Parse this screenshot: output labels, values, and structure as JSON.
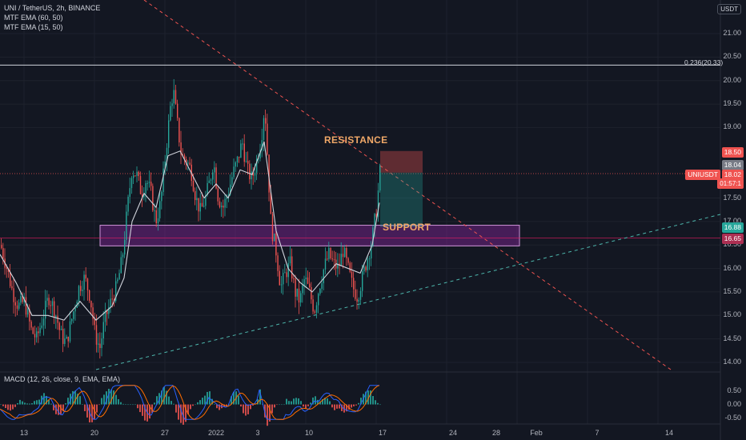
{
  "header": {
    "symbol_line": "UNI / TetherUS, 2h, BINANCE",
    "indicator_1": "MTF EMA (60, 50)",
    "indicator_2": "MTF EMA (15, 50)",
    "currency_badge": "USDT"
  },
  "price_axis": {
    "ticks": [
      "21.00",
      "20.50",
      "20.00",
      "19.50",
      "19.00",
      "17.50",
      "17.00",
      "16.50",
      "16.00",
      "15.50",
      "15.00",
      "14.50",
      "14.00"
    ],
    "tick_values": [
      21.0,
      20.5,
      20.0,
      19.5,
      19.0,
      17.5,
      17.0,
      16.5,
      16.0,
      15.5,
      15.0,
      14.5,
      14.0
    ],
    "tag_stop": "18.50",
    "tag_entry": "18.04",
    "tag_symbol": "UNIUSDT",
    "tag_price": "18.02",
    "tag_countdown": "01:57:1",
    "tag_target": "16.88",
    "tag_support": "16.65"
  },
  "time_axis": {
    "labels": [
      "13",
      "20",
      "27",
      "2022",
      "3",
      "10",
      "17",
      "24",
      "28",
      "Feb",
      "7",
      "14"
    ]
  },
  "annotations": {
    "resistance": "RESISTANCE",
    "support": "SUPPORT",
    "fib_level": "0.236(20.33)"
  },
  "macd": {
    "legend": "MACD (12, 26, close, 9, EMA, EMA)",
    "ticks": [
      "0.50",
      "0.00",
      "-0.50"
    ]
  },
  "colors": {
    "background": "#131722",
    "up_candle": "#26a69a",
    "down_candle": "#ef5350",
    "ema_line": "#d1d4dc",
    "support_zone": "#9c27b0",
    "resistance_line": "#ef5350",
    "trend_line": "#4db6ac",
    "macd_line": "#2962ff",
    "signal_line": "#ff6d00"
  },
  "chart_data": {
    "type": "candlestick",
    "symbol": "UNI / TetherUS",
    "interval": "2h",
    "exchange": "BINANCE",
    "price_range": [
      13.8,
      21.6
    ],
    "close_path": [
      [
        0,
        16.5
      ],
      [
        8,
        16.0
      ],
      [
        15,
        15.5
      ],
      [
        22,
        15.2
      ],
      [
        30,
        15.3
      ],
      [
        38,
        14.7
      ],
      [
        45,
        14.5
      ],
      [
        52,
        14.9
      ],
      [
        60,
        15.4
      ],
      [
        68,
        15.1
      ],
      [
        75,
        14.6
      ],
      [
        82,
        14.4
      ],
      [
        90,
        15.0
      ],
      [
        98,
        15.6
      ],
      [
        105,
        15.8
      ],
      [
        112,
        15.4
      ],
      [
        118,
        14.6
      ],
      [
        124,
        14.3
      ],
      [
        130,
        14.9
      ],
      [
        138,
        15.3
      ],
      [
        145,
        15.6
      ],
      [
        152,
        16.2
      ],
      [
        158,
        17.2
      ],
      [
        164,
        18.1
      ],
      [
        170,
        18.0
      ],
      [
        176,
        17.6
      ],
      [
        182,
        17.9
      ],
      [
        188,
        17.6
      ],
      [
        194,
        17.0
      ],
      [
        200,
        17.4
      ],
      [
        206,
        18.4
      ],
      [
        212,
        19.4
      ],
      [
        216,
        19.8
      ],
      [
        220,
        19.2
      ],
      [
        226,
        18.4
      ],
      [
        232,
        18.3
      ],
      [
        238,
        18.1
      ],
      [
        244,
        17.5
      ],
      [
        250,
        17.2
      ],
      [
        256,
        17.5
      ],
      [
        262,
        17.9
      ],
      [
        266,
        18.3
      ],
      [
        272,
        17.5
      ],
      [
        278,
        17.3
      ],
      [
        284,
        17.6
      ],
      [
        290,
        18.0
      ],
      [
        296,
        18.3
      ],
      [
        302,
        18.7
      ],
      [
        308,
        18.1
      ],
      [
        314,
        17.9
      ],
      [
        320,
        18.3
      ],
      [
        326,
        18.8
      ],
      [
        330,
        19.5
      ],
      [
        334,
        18.2
      ],
      [
        338,
        16.9
      ],
      [
        344,
        16.4
      ],
      [
        350,
        15.6
      ],
      [
        356,
        15.9
      ],
      [
        362,
        16.1
      ],
      [
        368,
        15.5
      ],
      [
        374,
        15.3
      ],
      [
        380,
        15.8
      ],
      [
        386,
        15.5
      ],
      [
        392,
        15.1
      ],
      [
        398,
        15.6
      ],
      [
        404,
        16.0
      ],
      [
        410,
        16.3
      ],
      [
        416,
        16.1
      ],
      [
        422,
        16.0
      ],
      [
        428,
        16.4
      ],
      [
        434,
        16.0
      ],
      [
        440,
        15.6
      ],
      [
        446,
        15.4
      ],
      [
        452,
        15.8
      ],
      [
        458,
        16.2
      ],
      [
        464,
        16.6
      ],
      [
        470,
        17.3
      ],
      [
        474,
        18.04
      ]
    ],
    "ema_path": [
      [
        0,
        16.3
      ],
      [
        20,
        15.7
      ],
      [
        40,
        15.0
      ],
      [
        60,
        15.0
      ],
      [
        80,
        14.9
      ],
      [
        100,
        15.3
      ],
      [
        120,
        14.9
      ],
      [
        140,
        15.2
      ],
      [
        155,
        15.8
      ],
      [
        165,
        17.0
      ],
      [
        180,
        17.6
      ],
      [
        195,
        17.3
      ],
      [
        210,
        18.4
      ],
      [
        225,
        18.5
      ],
      [
        240,
        18.0
      ],
      [
        255,
        17.5
      ],
      [
        270,
        17.8
      ],
      [
        285,
        17.5
      ],
      [
        300,
        18.1
      ],
      [
        315,
        18.0
      ],
      [
        330,
        18.7
      ],
      [
        345,
        16.8
      ],
      [
        360,
        16.0
      ],
      [
        375,
        15.7
      ],
      [
        390,
        15.5
      ],
      [
        405,
        15.8
      ],
      [
        420,
        16.1
      ],
      [
        435,
        16.0
      ],
      [
        450,
        15.9
      ],
      [
        465,
        16.5
      ],
      [
        474,
        17.4
      ]
    ],
    "levels": {
      "fib_0_236": 20.33,
      "stop_loss": 18.5,
      "entry": 18.04,
      "current": 18.02,
      "target": 16.88,
      "support_line": 16.65,
      "support_zone": [
        16.48,
        16.92
      ]
    },
    "macd_range": [
      -0.6,
      0.75
    ]
  }
}
